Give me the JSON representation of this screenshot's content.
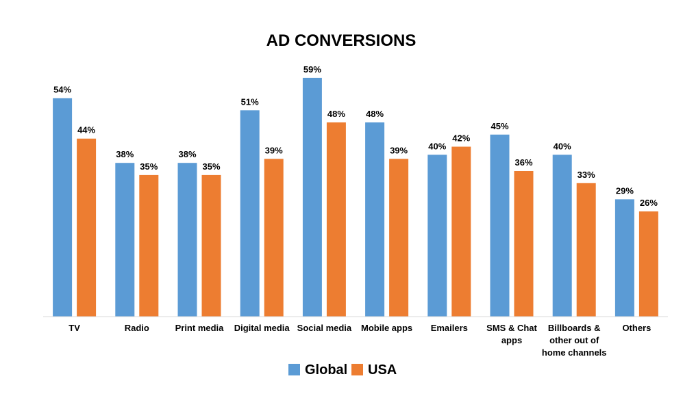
{
  "chart_data": {
    "type": "bar",
    "title": "AD CONVERSIONS",
    "xlabel": "",
    "ylabel": "",
    "ylim": [
      0,
      60
    ],
    "grid": false,
    "legend_position": "bottom",
    "value_suffix": "%",
    "categories": [
      [
        "TV"
      ],
      [
        "Radio"
      ],
      [
        "Print media"
      ],
      [
        "Digital media"
      ],
      [
        "Social media"
      ],
      [
        "Mobile apps"
      ],
      [
        "Emailers"
      ],
      [
        "SMS & Chat",
        "apps"
      ],
      [
        "Billboards &",
        "other out of",
        "home channels"
      ],
      [
        "Others"
      ]
    ],
    "series": [
      {
        "name": "Global",
        "color": "#5B9BD5",
        "values": [
          54,
          38,
          38,
          51,
          59,
          48,
          40,
          45,
          40,
          29
        ]
      },
      {
        "name": "USA",
        "color": "#ED7D31",
        "values": [
          44,
          35,
          35,
          39,
          48,
          39,
          42,
          36,
          33,
          26
        ]
      }
    ]
  }
}
